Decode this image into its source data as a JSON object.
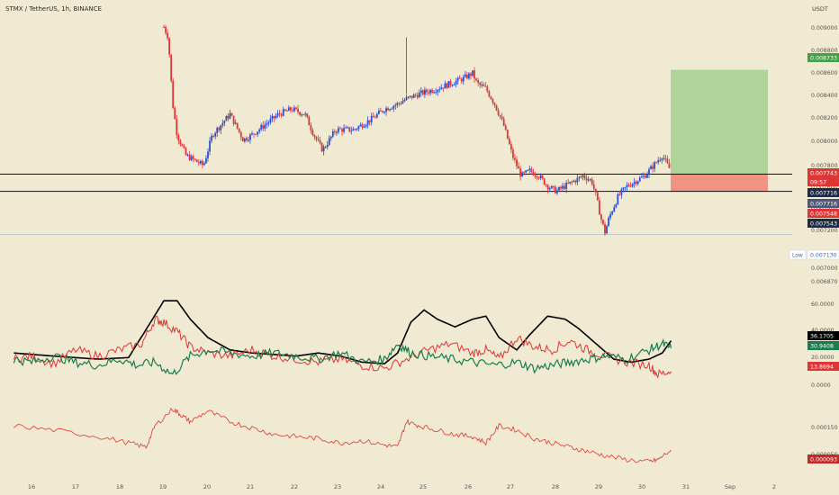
{
  "header": {
    "symbol_line": "STMX / TetherUS, 1h, BINANCE",
    "scale_unit": "USDT"
  },
  "colors": {
    "background": "#f1ead2",
    "up_candle": "#2a4fd1",
    "down_candle": "#e03535",
    "target_zone": "#a6d193",
    "stop_zone": "#f08a7a",
    "stoch_d": "#000000",
    "stoch_k": "#e03535",
    "dmi": "#1a7d4f",
    "atr": "#e03535"
  },
  "time_axis": {
    "labels": [
      "16",
      "17",
      "18",
      "19",
      "20",
      "21",
      "22",
      "23",
      "24",
      "25",
      "26",
      "27",
      "28",
      "29",
      "30",
      "31",
      "Sep",
      "2"
    ]
  },
  "price_panel": {
    "axis_labels": [
      "0.009000",
      "0.008800",
      "0.008600",
      "0.008400",
      "0.008200",
      "0.008000",
      "0.007800",
      "0.007600",
      "0.007400",
      "0.007200",
      "0.007000",
      "0.006870"
    ],
    "badges": [
      {
        "text": "0.008733",
        "color": "#43a047"
      },
      {
        "text": "0.007743",
        "color": "#e03535"
      },
      {
        "text": "09:57",
        "color": "#e03535"
      },
      {
        "text": "0.007716",
        "color": "#1f2a44"
      },
      {
        "text": "0.007716",
        "color": "#4d5a77"
      },
      {
        "text": "0.007548",
        "color": "#e03535"
      },
      {
        "text": "0.007543",
        "color": "#1f2a44"
      }
    ],
    "low_label": "Low",
    "low_value": "0.007130",
    "support_levels": [
      0.007716,
      0.007548
    ],
    "long_position": {
      "entry": 0.007716,
      "target": 0.008733,
      "stop": 0.007548
    },
    "low_price": 0.00713
  },
  "oscillator_panel": {
    "axis_labels": [
      "60.0000",
      "40.0000",
      "20.0000",
      "0.0000"
    ],
    "badges": [
      {
        "text": "36.1705",
        "color": "#000000"
      },
      {
        "text": "30.9408",
        "color": "#1a7d4f"
      },
      {
        "text": "13.8694",
        "color": "#e03535"
      }
    ]
  },
  "atr_panel": {
    "axis_labels": [
      "0.000150",
      "0.000050"
    ],
    "badge": {
      "text": "0.000093",
      "color": "#c62828"
    }
  },
  "chart_data": [
    {
      "type": "candlestick",
      "x_unit": "day (August, then September)",
      "y_unit": "USDT",
      "ylim": [
        0.00687,
        0.00915
      ],
      "x_start": 19.0,
      "x_end": 30.5,
      "price_path": [
        [
          19.0,
          0.00915
        ],
        [
          19.1,
          0.00905
        ],
        [
          19.2,
          0.0084
        ],
        [
          19.3,
          0.0081
        ],
        [
          19.5,
          0.0079
        ],
        [
          19.7,
          0.00785
        ],
        [
          19.9,
          0.0078
        ],
        [
          20.1,
          0.0081
        ],
        [
          20.5,
          0.0083
        ],
        [
          20.8,
          0.00805
        ],
        [
          21.0,
          0.0081
        ],
        [
          21.3,
          0.0082
        ],
        [
          21.6,
          0.0083
        ],
        [
          21.9,
          0.00835
        ],
        [
          22.2,
          0.0083
        ],
        [
          22.4,
          0.0081
        ],
        [
          22.6,
          0.00795
        ],
        [
          22.9,
          0.00815
        ],
        [
          23.3,
          0.00815
        ],
        [
          23.7,
          0.00825
        ],
        [
          24.0,
          0.00835
        ],
        [
          24.3,
          0.0084
        ],
        [
          24.5,
          0.00845
        ],
        [
          24.8,
          0.0085
        ],
        [
          25.2,
          0.00855
        ],
        [
          25.5,
          0.0086
        ],
        [
          25.8,
          0.00865
        ],
        [
          26.0,
          0.0087
        ],
        [
          26.1,
          0.0086
        ],
        [
          26.3,
          0.00855
        ],
        [
          26.5,
          0.0084
        ],
        [
          26.7,
          0.0082
        ],
        [
          26.9,
          0.0079
        ],
        [
          27.1,
          0.0077
        ],
        [
          27.3,
          0.00775
        ],
        [
          27.5,
          0.0077
        ],
        [
          27.7,
          0.0076
        ],
        [
          27.9,
          0.00755
        ],
        [
          28.1,
          0.0076
        ],
        [
          28.3,
          0.00765
        ],
        [
          28.5,
          0.0077
        ],
        [
          28.7,
          0.00765
        ],
        [
          28.8,
          0.0075
        ],
        [
          28.9,
          0.0073
        ],
        [
          29.0,
          0.00715
        ],
        [
          29.1,
          0.0073
        ],
        [
          29.3,
          0.0075
        ],
        [
          29.5,
          0.0076
        ],
        [
          29.7,
          0.00765
        ],
        [
          29.9,
          0.0077
        ],
        [
          30.1,
          0.0078
        ],
        [
          30.3,
          0.0079
        ],
        [
          30.5,
          0.00774
        ]
      ],
      "series_count": 1
    },
    {
      "type": "line",
      "title": "",
      "ylim": [
        0,
        75
      ],
      "series": [
        {
          "values_x_from": 15.6,
          "values_x_to": 30.5,
          "shape": "stoch_d",
          "points": [
            [
              15.6,
              28
            ],
            [
              16.5,
              26
            ],
            [
              17.5,
              24
            ],
            [
              18.2,
              25
            ],
            [
              18.7,
              48
            ],
            [
              19.0,
              62
            ],
            [
              19.3,
              62
            ],
            [
              19.6,
              50
            ],
            [
              20.0,
              38
            ],
            [
              20.5,
              30
            ],
            [
              21.0,
              28
            ],
            [
              21.5,
              27
            ],
            [
              22.0,
              26
            ],
            [
              22.5,
              28
            ],
            [
              23.0,
              26
            ],
            [
              23.5,
              22
            ],
            [
              24.0,
              21
            ],
            [
              24.3,
              28
            ],
            [
              24.6,
              48
            ],
            [
              24.9,
              56
            ],
            [
              25.2,
              50
            ],
            [
              25.6,
              45
            ],
            [
              26.0,
              50
            ],
            [
              26.3,
              52
            ],
            [
              26.6,
              38
            ],
            [
              27.0,
              30
            ],
            [
              27.3,
              40
            ],
            [
              27.7,
              52
            ],
            [
              28.1,
              50
            ],
            [
              28.4,
              44
            ],
            [
              28.8,
              34
            ],
            [
              29.2,
              24
            ],
            [
              29.6,
              22
            ],
            [
              30.0,
              24
            ],
            [
              30.3,
              28
            ],
            [
              30.5,
              36
            ]
          ]
        },
        {
          "shape": "stoch_k",
          "points": [
            [
              15.6,
              24
            ],
            [
              16.0,
              26
            ],
            [
              16.5,
              21
            ],
            [
              17.0,
              30
            ],
            [
              17.5,
              26
            ],
            [
              18.0,
              30
            ],
            [
              18.5,
              34
            ],
            [
              18.8,
              50
            ],
            [
              19.0,
              48
            ],
            [
              19.3,
              42
            ],
            [
              19.6,
              32
            ],
            [
              20.0,
              28
            ],
            [
              20.5,
              26
            ],
            [
              21.0,
              30
            ],
            [
              21.5,
              26
            ],
            [
              22.0,
              24
            ],
            [
              22.5,
              22
            ],
            [
              23.0,
              24
            ],
            [
              23.5,
              20
            ],
            [
              24.0,
              18
            ],
            [
              24.5,
              24
            ],
            [
              25.0,
              30
            ],
            [
              25.5,
              34
            ],
            [
              26.0,
              28
            ],
            [
              26.3,
              30
            ],
            [
              26.6,
              24
            ],
            [
              27.0,
              38
            ],
            [
              27.4,
              32
            ],
            [
              27.8,
              30
            ],
            [
              28.2,
              36
            ],
            [
              28.6,
              30
            ],
            [
              29.0,
              26
            ],
            [
              29.5,
              22
            ],
            [
              30.0,
              20
            ],
            [
              30.2,
              14
            ],
            [
              30.5,
              16
            ]
          ]
        },
        {
          "shape": "dmi",
          "points": [
            [
              15.6,
              24
            ],
            [
              16.0,
              22
            ],
            [
              16.5,
              26
            ],
            [
              17.0,
              22
            ],
            [
              17.5,
              20
            ],
            [
              18.0,
              24
            ],
            [
              18.4,
              20
            ],
            [
              18.8,
              22
            ],
            [
              19.2,
              14
            ],
            [
              19.6,
              26
            ],
            [
              20.0,
              30
            ],
            [
              20.5,
              28
            ],
            [
              21.0,
              26
            ],
            [
              21.5,
              28
            ],
            [
              22.0,
              26
            ],
            [
              22.5,
              24
            ],
            [
              23.0,
              28
            ],
            [
              23.5,
              22
            ],
            [
              24.0,
              24
            ],
            [
              24.3,
              34
            ],
            [
              24.6,
              28
            ],
            [
              25.0,
              26
            ],
            [
              25.5,
              24
            ],
            [
              26.0,
              22
            ],
            [
              26.5,
              20
            ],
            [
              27.0,
              22
            ],
            [
              27.4,
              18
            ],
            [
              27.8,
              20
            ],
            [
              28.2,
              22
            ],
            [
              28.6,
              24
            ],
            [
              29.0,
              26
            ],
            [
              29.5,
              24
            ],
            [
              30.0,
              30
            ],
            [
              30.3,
              34
            ],
            [
              30.5,
              31
            ]
          ]
        }
      ],
      "series_count": 3
    },
    {
      "type": "line",
      "title": "",
      "ylim": [
        4e-05,
        0.000195
      ],
      "series": [
        {
          "shape": "atr",
          "points": [
            [
              15.6,
              0.00015
            ],
            [
              16.5,
              0.00014
            ],
            [
              17.5,
              0.000125
            ],
            [
              18.2,
              0.00011
            ],
            [
              18.6,
              0.0001
            ],
            [
              18.8,
              0.00015
            ],
            [
              19.2,
              0.00019
            ],
            [
              19.4,
              0.000175
            ],
            [
              19.6,
              0.00016
            ],
            [
              20.0,
              0.000185
            ],
            [
              20.5,
              0.00016
            ],
            [
              21.0,
              0.000145
            ],
            [
              21.5,
              0.00013
            ],
            [
              22.0,
              0.000125
            ],
            [
              22.5,
              0.00012
            ],
            [
              23.0,
              0.00011
            ],
            [
              23.5,
              0.000115
            ],
            [
              24.0,
              0.000105
            ],
            [
              24.3,
              0.0001
            ],
            [
              24.5,
              0.00016
            ],
            [
              24.8,
              0.00015
            ],
            [
              25.2,
              0.00014
            ],
            [
              25.6,
              0.00013
            ],
            [
              26.0,
              0.000125
            ],
            [
              26.3,
              0.00011
            ],
            [
              26.6,
              0.00015
            ],
            [
              27.0,
              0.00014
            ],
            [
              27.4,
              0.00012
            ],
            [
              27.8,
              0.00011
            ],
            [
              28.2,
              0.0001
            ],
            [
              28.6,
              9e-05
            ],
            [
              29.0,
              8e-05
            ],
            [
              29.5,
              7e-05
            ],
            [
              30.0,
              6.5e-05
            ],
            [
              30.2,
              7e-05
            ],
            [
              30.5,
              9.3e-05
            ]
          ]
        }
      ],
      "series_count": 1
    }
  ]
}
